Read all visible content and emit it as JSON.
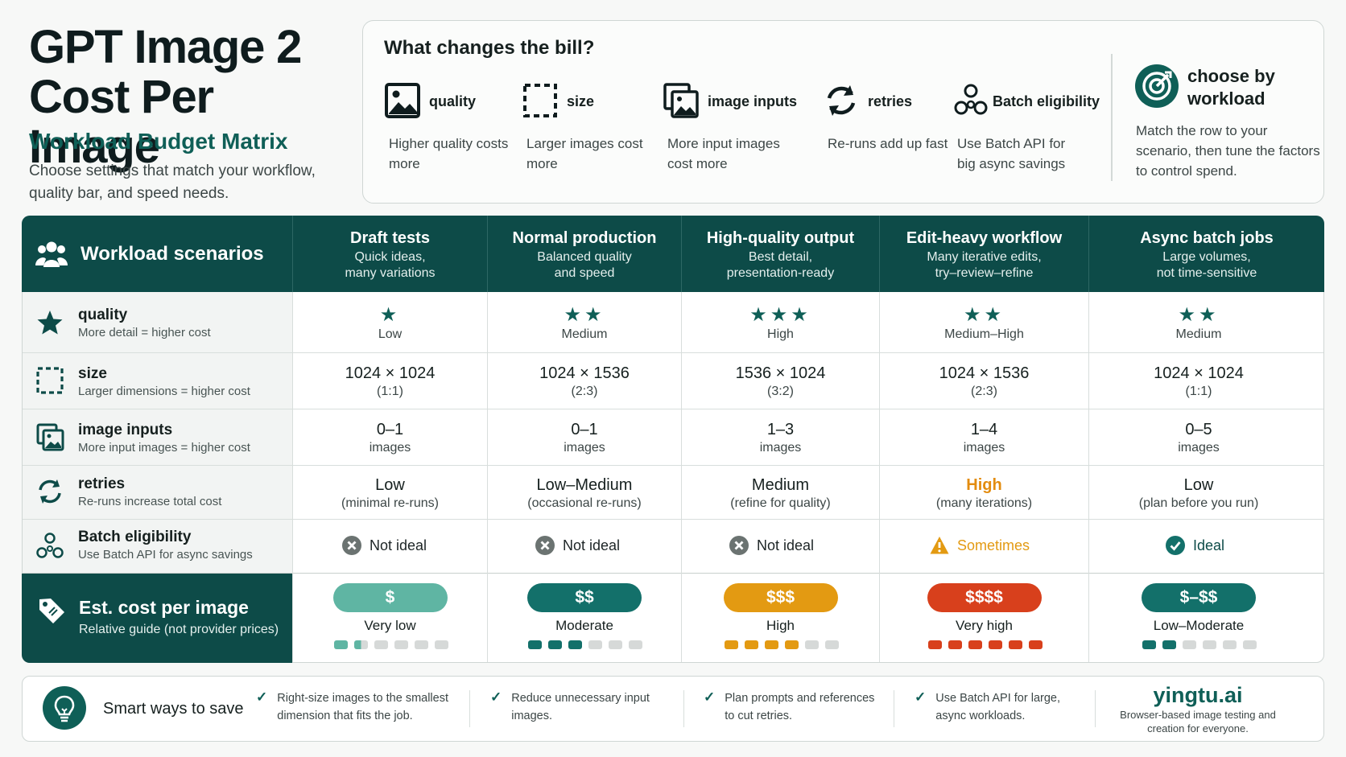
{
  "title": "GPT Image 2 Cost Per Image",
  "subtitle": "Workload Budget Matrix",
  "description": "Choose settings that match your workflow, quality bar, and speed needs.",
  "factors": {
    "heading": "What changes the bill?",
    "items": [
      {
        "label": "quality",
        "desc": "Higher quality costs more",
        "icon": "image-icon"
      },
      {
        "label": "size",
        "desc": "Larger images cost more",
        "icon": "dashed-frame-icon"
      },
      {
        "label": "image inputs",
        "desc": "More input images cost more",
        "icon": "stacked-images-icon"
      },
      {
        "label": "retries",
        "desc": "Re-runs add up fast",
        "icon": "refresh-icon"
      },
      {
        "label": "Batch eligibility",
        "desc": "Use Batch API for big async savings",
        "icon": "batch-circles-icon"
      }
    ],
    "choose_title": "choose by workload",
    "choose_desc": "Match the row to your scenario, then tune the factors to control spend."
  },
  "matrix": {
    "header_label": "Workload scenarios",
    "columns": [
      {
        "title": "Draft tests",
        "sub1": "Quick ideas,",
        "sub2": "many variations"
      },
      {
        "title": "Normal production",
        "sub1": "Balanced quality",
        "sub2": "and speed"
      },
      {
        "title": "High-quality output",
        "sub1": "Best detail,",
        "sub2": "presentation-ready"
      },
      {
        "title": "Edit-heavy workflow",
        "sub1": "Many iterative edits,",
        "sub2": "try–review–refine"
      },
      {
        "title": "Async batch jobs",
        "sub1": "Large volumes,",
        "sub2": "not time-sensitive"
      }
    ],
    "rows": {
      "quality": {
        "label": "quality",
        "sub": "More detail = higher cost",
        "cells": [
          {
            "stars": "★",
            "value": "Low"
          },
          {
            "stars": "★★",
            "value": "Medium"
          },
          {
            "stars": "★★★",
            "value": "High"
          },
          {
            "stars": "★★",
            "value": "Medium–High"
          },
          {
            "stars": "★★",
            "value": "Medium"
          }
        ]
      },
      "size": {
        "label": "size",
        "sub": "Larger dimensions = higher cost",
        "cells": [
          {
            "main": "1024 × 1024",
            "sub": "(1:1)"
          },
          {
            "main": "1024 × 1536",
            "sub": "(2:3)"
          },
          {
            "main": "1536 × 1024",
            "sub": "(3:2)"
          },
          {
            "main": "1024 × 1536",
            "sub": "(2:3)"
          },
          {
            "main": "1024 × 1024",
            "sub": "(1:1)"
          }
        ]
      },
      "inputs": {
        "label": "image inputs",
        "sub": "More input images = higher cost",
        "cells": [
          {
            "main": "0–1",
            "sub": "images"
          },
          {
            "main": "0–1",
            "sub": "images"
          },
          {
            "main": "1–3",
            "sub": "images"
          },
          {
            "main": "1–4",
            "sub": "images"
          },
          {
            "main": "0–5",
            "sub": "images"
          }
        ]
      },
      "retries": {
        "label": "retries",
        "sub": "Re-runs increase total cost",
        "cells": [
          {
            "main": "Low",
            "sub": "(minimal re-runs)"
          },
          {
            "main": "Low–Medium",
            "sub": "(occasional re-runs)"
          },
          {
            "main": "Medium",
            "sub": "(refine for quality)"
          },
          {
            "main": "High",
            "sub": "(many iterations)"
          },
          {
            "main": "Low",
            "sub": "(plan before you run)"
          }
        ]
      },
      "batch": {
        "label": "Batch eligibility",
        "sub": "Use Batch API for async savings",
        "cells": [
          {
            "value": "Not ideal",
            "status": "no"
          },
          {
            "value": "Not ideal",
            "status": "no"
          },
          {
            "value": "Not ideal",
            "status": "no"
          },
          {
            "value": "Sometimes",
            "status": "warn"
          },
          {
            "value": "Ideal",
            "status": "yes"
          }
        ]
      }
    },
    "cost": {
      "label": "Est. cost per image",
      "sub": "Relative guide (not provider prices)",
      "cells": [
        {
          "symbol": "$",
          "label": "Very low",
          "level": 1.5,
          "color": "#5fb5a3"
        },
        {
          "symbol": "$$",
          "label": "Moderate",
          "level": 3,
          "color": "#13706a"
        },
        {
          "symbol": "$$$",
          "label": "High",
          "level": 4,
          "color": "#e39a12"
        },
        {
          "symbol": "$$$$",
          "label": "Very high",
          "level": 6,
          "color": "#d8401c"
        },
        {
          "symbol": "$–$$",
          "label": "Low–Moderate",
          "level": 2,
          "color": "#13706a"
        }
      ]
    }
  },
  "savings": {
    "heading": "Smart ways to save",
    "tips": [
      "Right-size images to the smallest dimension that fits the job.",
      "Reduce unnecessary input images.",
      "Plan prompts and references to cut retries.",
      "Use Batch API for large, async workloads."
    ],
    "brand": "yingtu.ai",
    "brand_sub": "Browser-based image testing and creation for everyone."
  },
  "colors": {
    "primary": "#0d4b48",
    "accent": "#0f5f57",
    "warn": "#e39a12",
    "danger": "#d8401c",
    "muted": "#6b7371"
  }
}
